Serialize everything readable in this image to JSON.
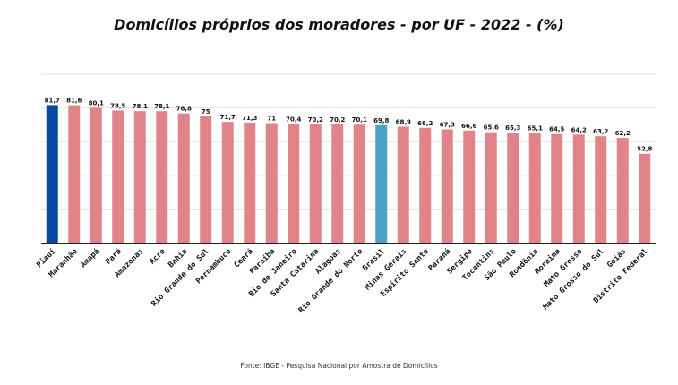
{
  "colors": {
    "default_bar": "#e08489",
    "highlight_first": "#0a4a9e",
    "highlight_brasil": "#4aa3c6",
    "grid": "#e2e2e2",
    "axis": "#222222"
  },
  "chart_data": {
    "type": "bar",
    "title": "Domicílios próprios dos moradores - por UF - 2022 - (%)",
    "source": "Fonte: IBGE -  Pesquisa Nacional por Amostra de Domicílios",
    "xlabel": "",
    "ylabel": "",
    "ylim": [
      0,
      100
    ],
    "grid": true,
    "categories": [
      "Piauí",
      "Maranhão",
      "Amapá",
      "Pará",
      "Amazonas",
      "Acre",
      "Bahia",
      "Rio Grande do Sul",
      "Pernambuco",
      "Ceará",
      "Paraíba",
      "Rio de Janeiro",
      "Santa Catarina",
      "Alagoas",
      "Rio Grande do Norte",
      "Brasil",
      "Minas Gerais",
      "Espírito Santo",
      "Paraná",
      "Sergipe",
      "Tocantins",
      "São Paulo",
      "Rondônia",
      "Roraima",
      "Mato Grosso",
      "Mato Grosso do Sul",
      "Goiás",
      "Distrito Federal"
    ],
    "values": [
      81.7,
      81.6,
      80.1,
      78.5,
      78.1,
      78.1,
      76.8,
      75,
      71.7,
      71.3,
      71,
      70.4,
      70.2,
      70.2,
      70.1,
      69.8,
      68.9,
      68.2,
      67.3,
      66.6,
      65.6,
      65.3,
      65.1,
      64.5,
      64.2,
      63.2,
      62.2,
      52.8
    ],
    "value_labels": [
      "81,7",
      "81,6",
      "80,1",
      "78,5",
      "78,1",
      "78,1",
      "76,8",
      "75",
      "71,7",
      "71,3",
      "71",
      "70,4",
      "70,2",
      "70,2",
      "70,1",
      "69,8",
      "68,9",
      "68,2",
      "67,3",
      "66,6",
      "65,6",
      "65,3",
      "65,1",
      "64,5",
      "64,2",
      "63,2",
      "62,2",
      "52,8"
    ]
  }
}
